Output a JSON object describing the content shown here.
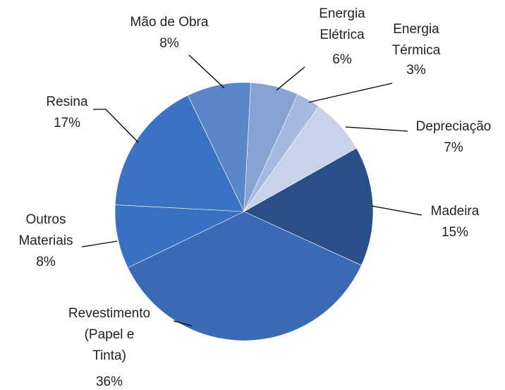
{
  "chart_data": {
    "type": "pie",
    "labels": [
      "Energia Elétrica",
      "Energia Térmica",
      "Depreciação",
      "Madeira",
      "Revestimento (Papel e Tinta)",
      "Outros Materiais",
      "Resina",
      "Mão de Obra"
    ],
    "values": [
      6,
      3,
      7,
      15,
      36,
      8,
      17,
      8
    ],
    "value_labels": [
      "6%",
      "3%",
      "7%",
      "15%",
      "36%",
      "8%",
      "17%",
      "8%"
    ],
    "colors": [
      "#86a3d3",
      "#a6b9de",
      "#c8d3ea",
      "#2a4e88",
      "#3a6ab3",
      "#3a70c2",
      "#3b72c1",
      "#5b87c9"
    ]
  }
}
